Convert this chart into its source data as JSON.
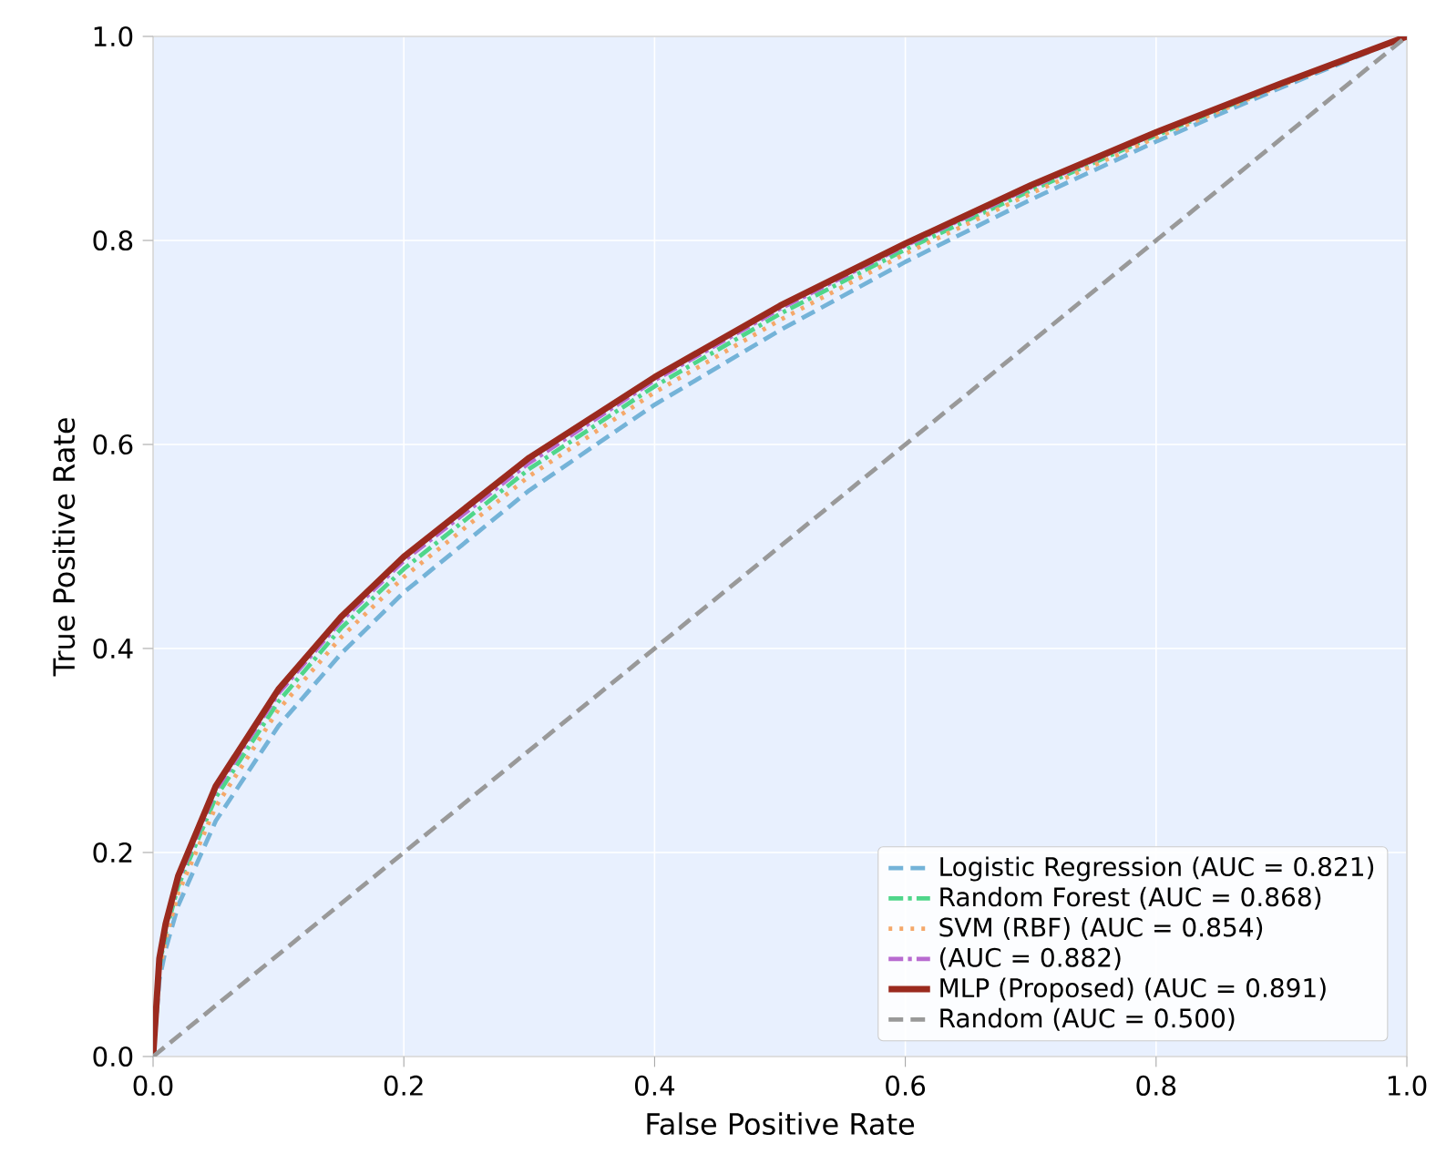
{
  "chart_data": {
    "type": "line",
    "xlabel": "False Positive Rate",
    "ylabel": "True Positive Rate",
    "xlim": [
      0,
      1
    ],
    "ylim": [
      0,
      1
    ],
    "xticks": [
      {
        "value": 0,
        "label": "0.0"
      },
      0.2,
      0.4,
      0.6,
      0.8,
      {
        "value": 1,
        "label": "1.0"
      }
    ],
    "yticks": [
      {
        "value": 0,
        "label": "0.0"
      },
      0.2,
      0.4,
      0.6,
      0.8,
      {
        "value": 1,
        "label": "1.0"
      }
    ],
    "grid": true,
    "legend": "bottom right",
    "marker": "none",
    "x": [
      0,
      0.005,
      0.01,
      0.02,
      0.05,
      0.1,
      0.15,
      0.2,
      0.3,
      0.4,
      0.5,
      0.6,
      0.7,
      0.8,
      0.9,
      1.0
    ],
    "series": [
      {
        "name": "Logistic Regression  (AUC = 0.821)",
        "color": "#74b3d8",
        "line_style": "dashed",
        "values": [
          0,
          0.075,
          0.105,
          0.148,
          0.231,
          0.324,
          0.395,
          0.455,
          0.555,
          0.639,
          0.712,
          0.779,
          0.84,
          0.897,
          0.95,
          1.0
        ]
      },
      {
        "name": "Random Forest  (AUC = 0.868)",
        "color": "#4fd68a",
        "line_style": "dashdot",
        "values": [
          0,
          0.088,
          0.121,
          0.167,
          0.254,
          0.348,
          0.42,
          0.478,
          0.576,
          0.657,
          0.728,
          0.791,
          0.849,
          0.903,
          0.953,
          1.0
        ]
      },
      {
        "name": "SVM (RBF)  (AUC = 0.854)",
        "color": "#f5a86a",
        "line_style": "dotted",
        "values": [
          0,
          0.083,
          0.115,
          0.16,
          0.245,
          0.34,
          0.411,
          0.47,
          0.569,
          0.651,
          0.722,
          0.787,
          0.846,
          0.901,
          0.952,
          1.0
        ]
      },
      {
        "name": "(AUC = 0.882)",
        "color": "#b86bd0",
        "line_style": "dashdot",
        "values": [
          0,
          0.093,
          0.126,
          0.173,
          0.261,
          0.356,
          0.427,
          0.486,
          0.582,
          0.663,
          0.733,
          0.795,
          0.852,
          0.905,
          0.954,
          1.0
        ]
      },
      {
        "name": "MLP (Proposed)  (AUC = 0.891)",
        "color": "#9b2a1e",
        "line_style": "solid",
        "values": [
          0,
          0.096,
          0.13,
          0.177,
          0.265,
          0.36,
          0.431,
          0.49,
          0.587,
          0.666,
          0.736,
          0.797,
          0.854,
          0.906,
          0.954,
          1.0
        ]
      },
      {
        "name": "Random (AUC = 0.500)",
        "color": "#999999",
        "line_style": "dashed",
        "x": [
          0,
          1
        ],
        "values": [
          0,
          1
        ]
      }
    ]
  }
}
